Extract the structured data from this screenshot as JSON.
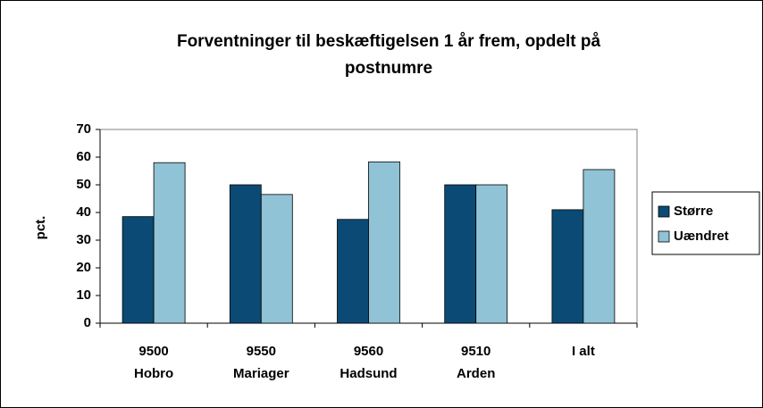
{
  "chart_data": {
    "type": "bar",
    "title": "Forventninger til beskæftigelsen 1 år frem, opdelt på\npostnumre",
    "y_label": "pct.",
    "categories": [
      "9500\nHobro",
      "9550\nMariager",
      "9560\nHadsund",
      "9510\nArden",
      "I alt"
    ],
    "series": [
      {
        "name": "Større",
        "color": "#0b4a75",
        "values": [
          38.5,
          50,
          37.5,
          50,
          41
        ]
      },
      {
        "name": "Uændret",
        "color": "#90c3d5",
        "values": [
          58,
          46.5,
          58.3,
          50,
          55.5
        ]
      }
    ],
    "ylim": [
      0,
      70
    ],
    "yticks": [
      0,
      10,
      20,
      30,
      40,
      50,
      60,
      70
    ],
    "grid": false,
    "legend": "right"
  }
}
